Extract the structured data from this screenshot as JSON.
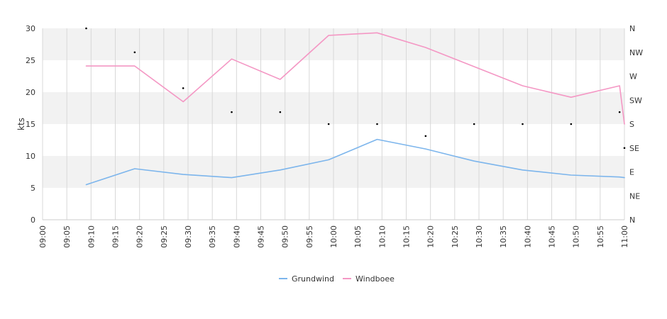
{
  "chart_data": {
    "type": "line",
    "ylabel": "kts",
    "ylim": [
      0,
      30
    ],
    "y_ticks": [
      "0",
      "5",
      "10",
      "15",
      "20",
      "25",
      "30"
    ],
    "x_ticks": [
      "09:00",
      "09:05",
      "09:10",
      "09:15",
      "09:20",
      "09:25",
      "09:30",
      "09:35",
      "09:40",
      "09:45",
      "09:50",
      "09:55",
      "10:00",
      "10:05",
      "10:10",
      "10:15",
      "10:20",
      "10:25",
      "10:30",
      "10:35",
      "10:40",
      "10:45",
      "10:50",
      "10:55",
      "11:00"
    ],
    "xlim": [
      "09:00",
      "11:00"
    ],
    "grid": "vertical lines and alternating horizontal bands",
    "right_axis": {
      "label_ticks": [
        "N",
        "NW",
        "W",
        "SW",
        "S",
        "SE",
        "E",
        "NE",
        "N"
      ],
      "range": [
        0,
        360
      ]
    },
    "series": [
      {
        "name": "Grundwind",
        "color": "#7cb5ec",
        "x": [
          "09:09",
          "09:19",
          "09:29",
          "09:39",
          "09:49",
          "09:59",
          "10:09",
          "10:19",
          "10:29",
          "10:39",
          "10:49",
          "10:59",
          "11:00"
        ],
        "values": [
          5.5,
          8.0,
          7.1,
          6.6,
          7.8,
          9.4,
          12.6,
          11.1,
          9.2,
          7.8,
          7.0,
          6.7,
          6.6
        ]
      },
      {
        "name": "Windboee",
        "color": "#f497c4",
        "x": [
          "09:09",
          "09:19",
          "09:29",
          "09:39",
          "09:49",
          "09:59",
          "10:09",
          "10:19",
          "10:29",
          "10:39",
          "10:49",
          "10:59",
          "11:00"
        ],
        "values": [
          24.1,
          24.1,
          18.5,
          25.2,
          22.0,
          28.9,
          29.3,
          27.0,
          24.0,
          21.0,
          19.2,
          21.0,
          15.0
        ]
      }
    ],
    "direction_points": {
      "x": [
        "09:09",
        "09:19",
        "09:29",
        "09:39",
        "09:49",
        "09:59",
        "10:09",
        "10:19",
        "10:29",
        "10:39",
        "10:49",
        "10:59",
        "11:00"
      ],
      "direction_deg": [
        360,
        315,
        247.5,
        202.5,
        202.5,
        180,
        180,
        157.5,
        180,
        180,
        180,
        202.5,
        135
      ]
    },
    "legend": {
      "placement": "bottom-center",
      "items": [
        "Grundwind",
        "Windboee"
      ]
    }
  }
}
